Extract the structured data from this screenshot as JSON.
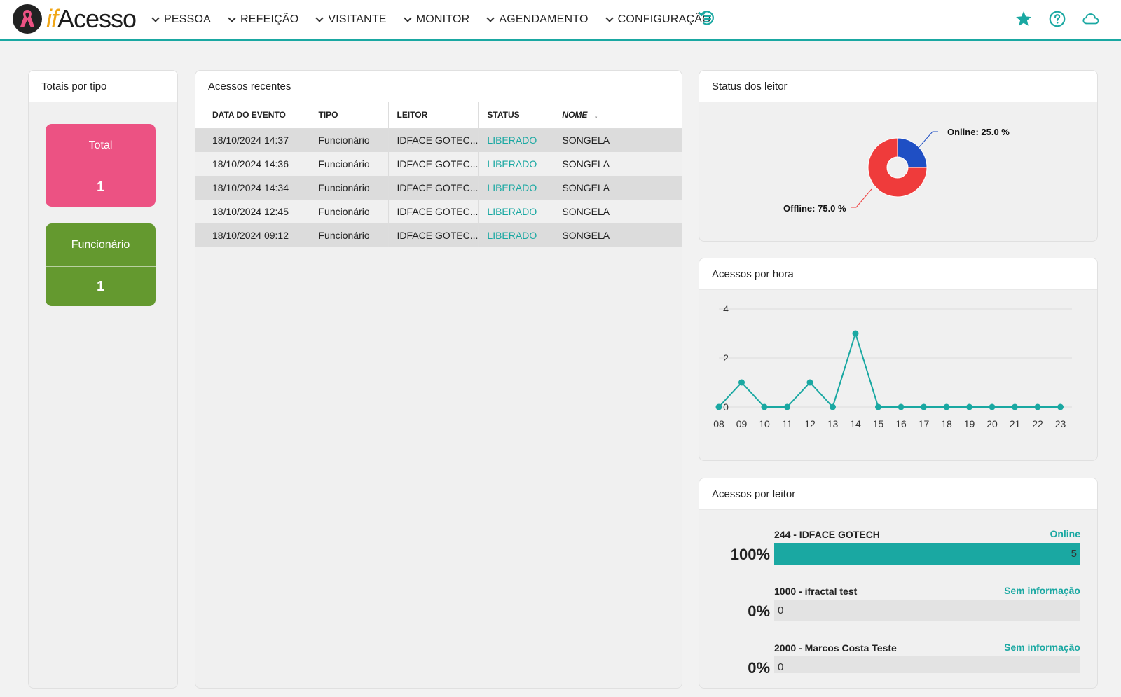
{
  "brand": {
    "if": "if",
    "name": "Acesso"
  },
  "nav": [
    {
      "label": "PESSOA"
    },
    {
      "label": "REFEIÇÃO"
    },
    {
      "label": "VISITANTE"
    },
    {
      "label": "MONITOR"
    },
    {
      "label": "AGENDAMENTO"
    },
    {
      "label": "CONFIGURAÇÃO"
    }
  ],
  "colors": {
    "accent": "#1aa8a2",
    "pink": "#ec5283",
    "green": "#64992f",
    "online": "#1f4fc4",
    "offline": "#ef3b3b"
  },
  "totals": {
    "title": "Totais por tipo",
    "items": [
      {
        "label": "Total",
        "value": "1"
      },
      {
        "label": "Funcionário",
        "value": "1"
      }
    ]
  },
  "recent": {
    "title": "Acessos recentes",
    "columns": [
      "DATA DO EVENTO",
      "TIPO",
      "LEITOR",
      "STATUS",
      "NOME"
    ],
    "rows": [
      [
        "18/10/2024 14:37",
        "Funcionário",
        "IDFACE GOTEC...",
        "LIBERADO",
        "SONGELA"
      ],
      [
        "18/10/2024 14:36",
        "Funcionário",
        "IDFACE GOTEC...",
        "LIBERADO",
        "SONGELA"
      ],
      [
        "18/10/2024 14:34",
        "Funcionário",
        "IDFACE GOTEC...",
        "LIBERADO",
        "SONGELA"
      ],
      [
        "18/10/2024 12:45",
        "Funcionário",
        "IDFACE GOTEC...",
        "LIBERADO",
        "SONGELA"
      ],
      [
        "18/10/2024 09:12",
        "Funcionário",
        "IDFACE GOTEC...",
        "LIBERADO",
        "SONGELA"
      ]
    ]
  },
  "status": {
    "title": "Status dos leitor",
    "online_label": "Online: 25.0 %",
    "offline_label": "Offline: 75.0 %"
  },
  "hourly": {
    "title": "Acessos por hora"
  },
  "leitor": {
    "title": "Acessos por leitor",
    "items": [
      {
        "name": "244 - IDFACE GOTECH",
        "state": "Online",
        "pct": "100%",
        "count": "5",
        "fraction": 1.0
      },
      {
        "name": "1000 - ifractal test",
        "state": "Sem informação",
        "pct": "0%",
        "count": "0",
        "fraction": 0
      },
      {
        "name": "2000 - Marcos Costa Teste",
        "state": "Sem informação",
        "pct": "0%",
        "count": "0",
        "fraction": 0
      }
    ]
  },
  "chart_data": [
    {
      "type": "pie",
      "labels": [
        "Online",
        "Offline"
      ],
      "values": [
        25.0,
        75.0
      ],
      "title": "Status dos leitor"
    },
    {
      "type": "line",
      "title": "Acessos por hora",
      "x": [
        "08",
        "09",
        "10",
        "11",
        "12",
        "13",
        "14",
        "15",
        "16",
        "17",
        "18",
        "19",
        "20",
        "21",
        "22",
        "23"
      ],
      "series": [
        {
          "values": [
            0,
            1,
            0,
            0,
            1,
            0,
            3,
            0,
            0,
            0,
            0,
            0,
            0,
            0,
            0,
            0
          ]
        }
      ],
      "yticks": [
        "0",
        "2",
        "4"
      ],
      "ylim": [
        0,
        4
      ],
      "grid": true
    }
  ]
}
